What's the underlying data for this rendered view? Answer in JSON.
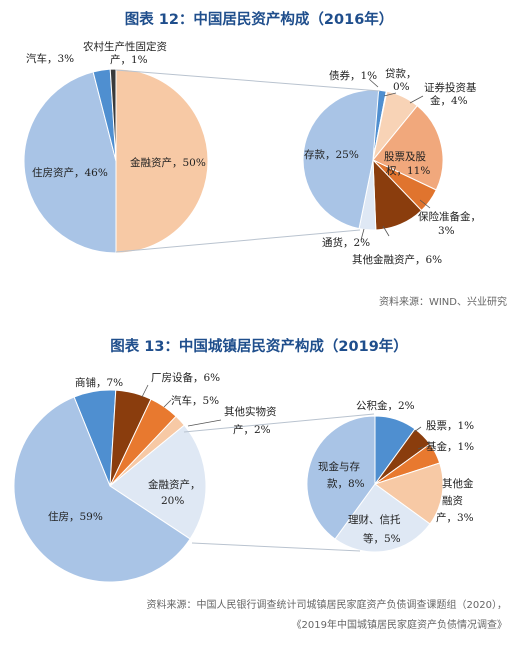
{
  "chart_data": [
    {
      "type": "pie",
      "title": "图表 12：中国居民资产构成（2016年）",
      "source": "资料来源：WIND、兴业研究",
      "main_pie": [
        {
          "name": "住房资产",
          "value": 46,
          "color": "#a9c4e6",
          "label": "住房资产，46%"
        },
        {
          "name": "汽车",
          "value": 3,
          "color": "#4f8fd0",
          "label": "汽车，3%"
        },
        {
          "name": "农村生产性固定资产",
          "value": 1,
          "color": "#3a3a3a",
          "label": "农村生产性固定资产，1%"
        },
        {
          "name": "金融资产",
          "value": 50,
          "color": "#f7c9a5",
          "label": "金融资产，50%"
        }
      ],
      "breakdown": [
        {
          "name": "存款",
          "value": 25,
          "color": "#a9c4e6",
          "label": "存款，25%"
        },
        {
          "name": "债券",
          "value": 1,
          "color": "#4f8fd0",
          "label": "债券，1%"
        },
        {
          "name": "贷款",
          "value": 0,
          "color": "#2f5e94",
          "label": "贷款，0%"
        },
        {
          "name": "证券投资基金",
          "value": 4,
          "color": "#f8d3b6",
          "label": "证券投资基金，4%"
        },
        {
          "name": "股票及股权",
          "value": 11,
          "color": "#f1a87c",
          "label": "股票及股权，11%"
        },
        {
          "name": "保险准备金",
          "value": 3,
          "color": "#e0742e",
          "label": "保险准备金，3%"
        },
        {
          "name": "其他金融资产",
          "value": 6,
          "color": "#8a3d0d",
          "label": "其他金融资产，6%"
        },
        {
          "name": "通货",
          "value": 2,
          "color": "#dfe8f4",
          "label": "通货，2%"
        }
      ]
    },
    {
      "type": "pie",
      "title": "图表 13：中国城镇居民资产构成（2019年）",
      "source_lines": [
        "资料来源：中国人民银行调查统计司城镇居民家庭资产负债调查课题组（2020），",
        "《2019年中国城镇居民家庭资产负债情况调查》"
      ],
      "main_pie": [
        {
          "name": "住房",
          "value": 59,
          "color": "#a9c4e6",
          "label": "住房，59%"
        },
        {
          "name": "商铺",
          "value": 7,
          "color": "#4f8fd0",
          "label": "商铺，7%"
        },
        {
          "name": "厂房设备",
          "value": 6,
          "color": "#8a3d0d",
          "label": "厂房设备，6%"
        },
        {
          "name": "汽车",
          "value": 5,
          "color": "#e8792f",
          "label": "汽车，5%"
        },
        {
          "name": "其他实物资产",
          "value": 2,
          "color": "#f7c9a5",
          "label": "其他实物资产，2%"
        },
        {
          "name": "金融资产",
          "value": 20,
          "color": "#dfe8f4",
          "label": "金融资产，20%"
        }
      ],
      "breakdown": [
        {
          "name": "现金与存款",
          "value": 8,
          "color": "#a9c4e6",
          "label": "现金与存款，8%"
        },
        {
          "name": "公积金",
          "value": 2,
          "color": "#4f8fd0",
          "label": "公积金，2%"
        },
        {
          "name": "股票",
          "value": 1,
          "color": "#8a3d0d",
          "label": "股票，1%"
        },
        {
          "name": "基金",
          "value": 1,
          "color": "#e8792f",
          "label": "基金，1%"
        },
        {
          "name": "其他金融资产",
          "value": 3,
          "color": "#f7c9a5",
          "label": "其他金融资产，3%"
        },
        {
          "name": "理财、信托等",
          "value": 5,
          "color": "#dfe8f4",
          "label": "理财、信托等，5%"
        }
      ]
    }
  ]
}
